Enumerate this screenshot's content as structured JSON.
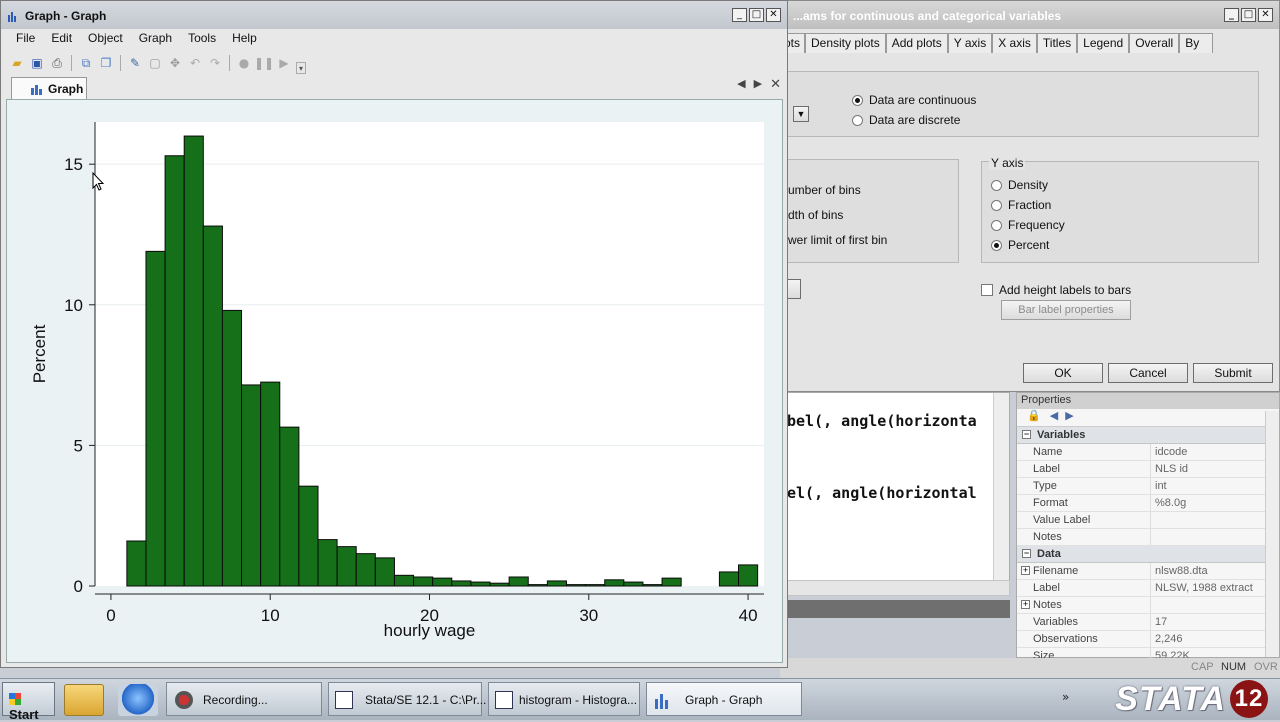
{
  "dialog": {
    "title": "...ams for continuous and categorical variables",
    "tabs": [
      "ots",
      "Density plots",
      "Add plots",
      "Y axis",
      "X axis",
      "Titles",
      "Legend",
      "Overall",
      "By"
    ],
    "data_type": {
      "options": [
        "Data are continuous",
        "Data are discrete"
      ],
      "selected": "Data are continuous"
    },
    "bins_labels": [
      "umber of bins",
      "dth of bins",
      "wer limit of first bin"
    ],
    "y_axis": {
      "legend": "Y axis",
      "options": [
        "Density",
        "Fraction",
        "Frequency",
        "Percent"
      ],
      "selected": "Percent"
    },
    "height_labels_label": "Add height labels to bars",
    "bar_label_props": "Bar label properties",
    "ok": "OK",
    "cancel": "Cancel",
    "submit": "Submit"
  },
  "results": {
    "lines": [
      "bel(, angle(horizonta",
      "el(, angle(horizontal"
    ]
  },
  "properties": {
    "title": "Properties",
    "variables_header": "Variables",
    "variables": [
      {
        "key": "Name",
        "value": "idcode"
      },
      {
        "key": "Label",
        "value": "NLS id"
      },
      {
        "key": "Type",
        "value": "int"
      },
      {
        "key": "Format",
        "value": "%8.0g"
      },
      {
        "key": "Value Label",
        "value": ""
      },
      {
        "key": "Notes",
        "value": ""
      }
    ],
    "data_header": "Data",
    "data": [
      {
        "key": "Filename",
        "value": "nlsw88.dta"
      },
      {
        "key": "Label",
        "value": "NLSW, 1988 extract"
      },
      {
        "key": "Notes",
        "value": ""
      },
      {
        "key": "Variables",
        "value": "17"
      },
      {
        "key": "Observations",
        "value": "2,246"
      },
      {
        "key": "Size",
        "value": "59.22K"
      }
    ]
  },
  "status": {
    "cap": "CAP",
    "num": "NUM",
    "ovr": "OVR"
  },
  "graph_window": {
    "title": "Graph - Graph",
    "menu": [
      "File",
      "Edit",
      "Object",
      "Graph",
      "Tools",
      "Help"
    ],
    "tab_label": "Graph"
  },
  "chart_data": {
    "type": "bar",
    "xlabel": "hourly wage",
    "ylabel": "Percent",
    "xlim": [
      -1,
      41
    ],
    "ylim": [
      0,
      16.5
    ],
    "x_ticks": [
      0,
      10,
      20,
      30,
      40
    ],
    "y_ticks": [
      0,
      5,
      10,
      15
    ],
    "bin_width": 1.2,
    "bar_color": "#16701a",
    "bars": [
      {
        "x0": 1.0,
        "value": 1.6
      },
      {
        "x0": 2.2,
        "value": 11.9
      },
      {
        "x0": 3.4,
        "value": 15.3
      },
      {
        "x0": 4.6,
        "value": 16.0
      },
      {
        "x0": 5.8,
        "value": 12.8
      },
      {
        "x0": 7.0,
        "value": 9.8
      },
      {
        "x0": 8.2,
        "value": 7.15
      },
      {
        "x0": 9.4,
        "value": 7.25
      },
      {
        "x0": 10.6,
        "value": 5.65
      },
      {
        "x0": 11.8,
        "value": 3.55
      },
      {
        "x0": 13.0,
        "value": 1.65
      },
      {
        "x0": 14.2,
        "value": 1.4
      },
      {
        "x0": 15.4,
        "value": 1.15
      },
      {
        "x0": 16.6,
        "value": 1.0
      },
      {
        "x0": 17.8,
        "value": 0.38
      },
      {
        "x0": 19.0,
        "value": 0.32
      },
      {
        "x0": 20.2,
        "value": 0.28
      },
      {
        "x0": 21.4,
        "value": 0.18
      },
      {
        "x0": 22.6,
        "value": 0.14
      },
      {
        "x0": 23.8,
        "value": 0.1
      },
      {
        "x0": 25.0,
        "value": 0.32
      },
      {
        "x0": 26.2,
        "value": 0.05
      },
      {
        "x0": 27.4,
        "value": 0.18
      },
      {
        "x0": 28.6,
        "value": 0.05
      },
      {
        "x0": 29.8,
        "value": 0.05
      },
      {
        "x0": 31.0,
        "value": 0.22
      },
      {
        "x0": 32.2,
        "value": 0.14
      },
      {
        "x0": 33.4,
        "value": 0.05
      },
      {
        "x0": 34.6,
        "value": 0.28
      },
      {
        "x0": 35.8,
        "value": 0.0
      },
      {
        "x0": 37.0,
        "value": 0.0
      },
      {
        "x0": 38.2,
        "value": 0.5
      },
      {
        "x0": 39.4,
        "value": 0.75
      }
    ]
  },
  "taskbar": {
    "start": "Start",
    "items": [
      {
        "label": "Recording..."
      },
      {
        "label": "Stata/SE 12.1 - C:\\Pr..."
      },
      {
        "label": "histogram - Histogra..."
      },
      {
        "label": "Graph - Graph"
      }
    ],
    "logo_text": "STATA",
    "logo_version": "12",
    "tray_arrow": "»"
  }
}
